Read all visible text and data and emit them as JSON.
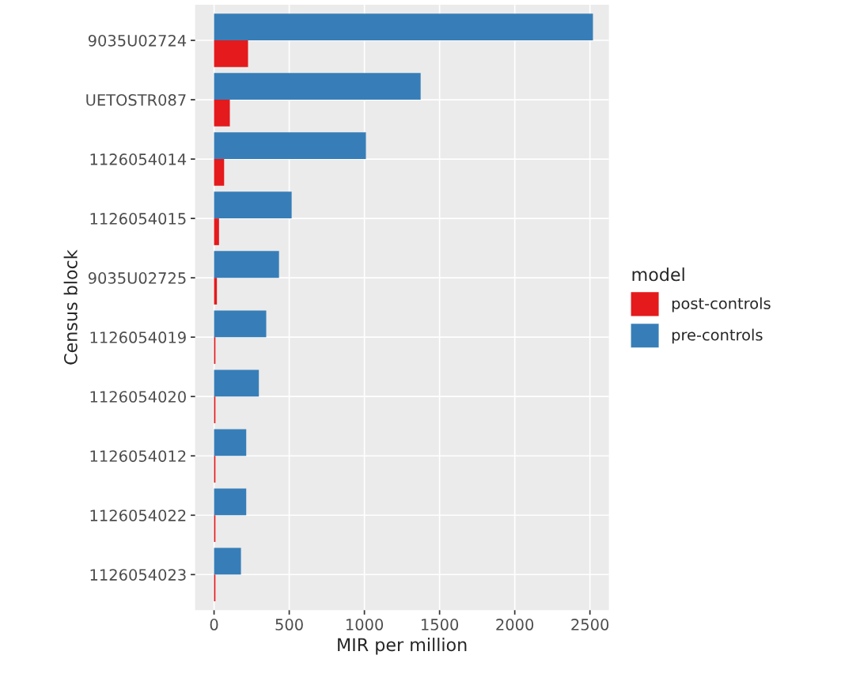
{
  "chart_data": {
    "type": "bar",
    "orientation": "horizontal",
    "xlabel": "MIR per million",
    "ylabel": "Census block",
    "legend_title": "model",
    "legend": "right",
    "grid": true,
    "categories": [
      "9035U02724",
      "UETOSTR087",
      "1126054014",
      "1126054015",
      "9035U02725",
      "1126054019",
      "1126054020",
      "1126054012",
      "1126054022",
      "1126054023"
    ],
    "series": [
      {
        "name": "post-controls",
        "color": "#e41a1c",
        "values": [
          226,
          105,
          67,
          33,
          19,
          9,
          9,
          9,
          9,
          9
        ]
      },
      {
        "name": "pre-controls",
        "color": "#377eb8",
        "values": [
          2520,
          1374,
          1010,
          516,
          432,
          347,
          298,
          214,
          214,
          179
        ]
      }
    ],
    "xlim": [
      -126,
      2626
    ],
    "xticks": [
      0,
      500,
      1000,
      1500,
      2000,
      2500
    ]
  }
}
